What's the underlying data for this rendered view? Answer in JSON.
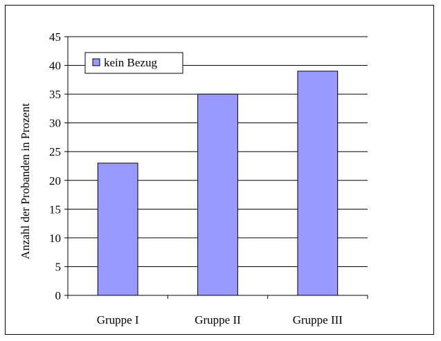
{
  "chart_data": {
    "type": "bar",
    "categories": [
      "Gruppe I",
      "Gruppe II",
      "Gruppe III"
    ],
    "series": [
      {
        "name": "kein Bezug",
        "values": [
          23,
          35,
          39
        ],
        "color": "#9999ff"
      }
    ],
    "xlabel": "",
    "ylabel": "Anzahl der Probanden in Prozent",
    "ylim": [
      0,
      45
    ],
    "yticks": [
      "0",
      "5",
      "10",
      "15",
      "20",
      "25",
      "30",
      "35",
      "40",
      "45"
    ],
    "grid": true,
    "legend": "top-left"
  }
}
